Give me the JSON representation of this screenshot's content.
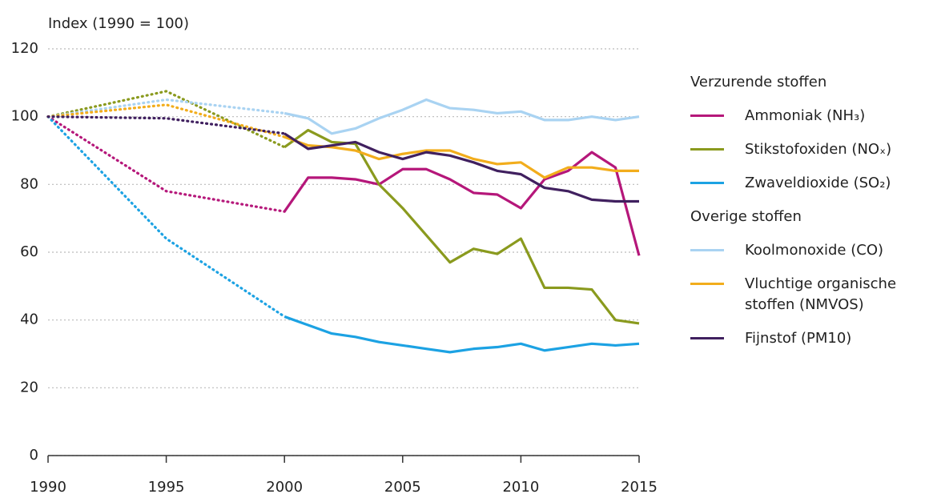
{
  "chart_data": {
    "type": "line",
    "y_label": "Index (1990 = 100)",
    "x": [
      1990,
      1995,
      2000,
      2001,
      2002,
      2003,
      2004,
      2005,
      2006,
      2007,
      2008,
      2009,
      2010,
      2011,
      2012,
      2013,
      2014,
      2015
    ],
    "xlim": [
      1990,
      2015
    ],
    "xticks": [
      1990,
      1995,
      2000,
      2005,
      2010,
      2015
    ],
    "ylim": [
      0,
      120
    ],
    "yticks": [
      0,
      20,
      40,
      60,
      80,
      100,
      120
    ],
    "grid": true,
    "legend_groups": [
      {
        "title": "Verzurende stoffen",
        "series": [
          0,
          1,
          2
        ]
      },
      {
        "title": "Overige stoffen",
        "series": [
          3,
          4,
          5
        ]
      }
    ],
    "series": [
      {
        "name": "Ammoniak (NH₃)",
        "color": "#b5177a",
        "values": [
          100,
          78,
          72,
          82,
          82,
          81.5,
          80,
          84.5,
          84.5,
          81.5,
          77.5,
          77,
          73,
          81.5,
          84,
          89.5,
          85,
          59
        ]
      },
      {
        "name": "Stikstofoxiden (NOₓ)",
        "color": "#8a9a1e",
        "values": [
          100,
          107.5,
          91,
          96,
          92.5,
          92,
          80,
          73,
          65,
          57,
          61,
          59.5,
          64,
          49.5,
          49.5,
          49,
          40,
          39
        ]
      },
      {
        "name": "Zwaveldioxide (SO₂)",
        "color": "#1ca2e3",
        "values": [
          100,
          64,
          41,
          38.5,
          36,
          35,
          33.5,
          32.5,
          31.5,
          30.5,
          31.5,
          32,
          33,
          31,
          32,
          33,
          32.5,
          33
        ]
      },
      {
        "name": "Koolmonoxide (CO)",
        "color": "#a9d3f2",
        "values": [
          100,
          105,
          101,
          99.5,
          95,
          96.5,
          99.5,
          102,
          105,
          102.5,
          102,
          101,
          101.5,
          99,
          99,
          100,
          99,
          100
        ]
      },
      {
        "name": "Vluchtige organische stoffen (NMVOS)",
        "color": "#f2ad1c",
        "values": [
          100,
          103.5,
          94,
          91.5,
          91,
          90,
          87.5,
          89,
          90,
          90,
          87.5,
          86,
          86.5,
          82,
          85,
          85,
          84,
          84
        ]
      },
      {
        "name": "Fijnstof (PM10)",
        "color": "#40205f",
        "values": [
          100,
          99.5,
          95,
          90.5,
          91.5,
          92.5,
          89.5,
          87.5,
          89.5,
          88.5,
          86.5,
          84,
          83,
          79,
          78,
          75.5,
          75,
          75
        ]
      }
    ]
  }
}
